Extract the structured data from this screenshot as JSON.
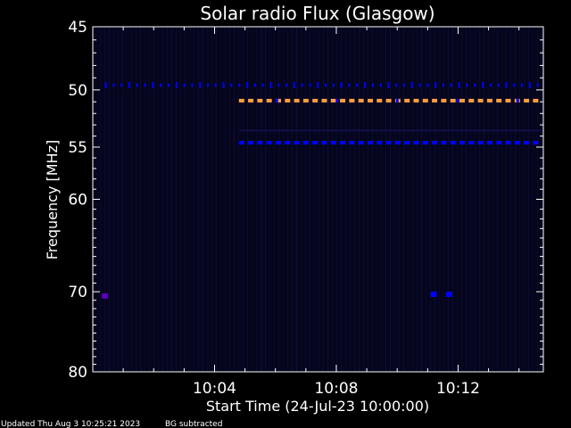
{
  "chart_data": {
    "type": "heatmap",
    "title": "Solar radio Flux (Glasgow)",
    "xlabel": "Start Time (24-Jul-23 10:00:00)",
    "ylabel": "Frequency [MHz]",
    "x_tick_labels": [
      "10:04",
      "10:08",
      "10:12"
    ],
    "x_tick_minutes": [
      4,
      8,
      12
    ],
    "xlim_minutes": [
      0,
      14.8
    ],
    "y_tick_labels": [
      "45",
      "50",
      "55",
      "60",
      "70",
      "80"
    ],
    "y_tick_values": [
      45,
      50,
      55,
      60,
      70,
      80
    ],
    "ylim": [
      45,
      80
    ],
    "y_scale": "log",
    "colors": {
      "background": "#000000",
      "plot_background": "#05051c",
      "intense": "#ffa040",
      "medium": "#0000ff",
      "weak": "#10104a",
      "spot": "#5a00c0",
      "frame": "#ffffff"
    },
    "features": [
      {
        "freq_mhz": 49.6,
        "t_start_min": 0.4,
        "t_end_min": 14.8,
        "level": "medium",
        "pattern": "sparse"
      },
      {
        "freq_mhz": 50.9,
        "t_start_min": 4.8,
        "t_end_min": 14.8,
        "level": "intense",
        "pattern": "dashed"
      },
      {
        "freq_mhz": 50.9,
        "t_start_min": 6.0,
        "t_end_min": 14.8,
        "level": "medium",
        "pattern": "dots"
      },
      {
        "freq_mhz": 53.5,
        "t_start_min": 4.8,
        "t_end_min": 14.8,
        "level": "weak",
        "pattern": "solid"
      },
      {
        "freq_mhz": 54.6,
        "t_start_min": 4.8,
        "t_end_min": 14.8,
        "level": "medium",
        "pattern": "dashed"
      },
      {
        "freq_mhz": 70.5,
        "t_start_min": 0.3,
        "t_end_min": 0.5,
        "level": "spot",
        "pattern": "solid"
      },
      {
        "freq_mhz": 70.3,
        "t_start_min": 11.1,
        "t_end_min": 11.3,
        "level": "medium",
        "pattern": "solid"
      },
      {
        "freq_mhz": 70.3,
        "t_start_min": 11.6,
        "t_end_min": 11.8,
        "level": "medium",
        "pattern": "solid"
      }
    ]
  },
  "footer": {
    "updated": "Updated Thu Aug  3 10:25:21 2023",
    "note": "BG subtracted"
  }
}
